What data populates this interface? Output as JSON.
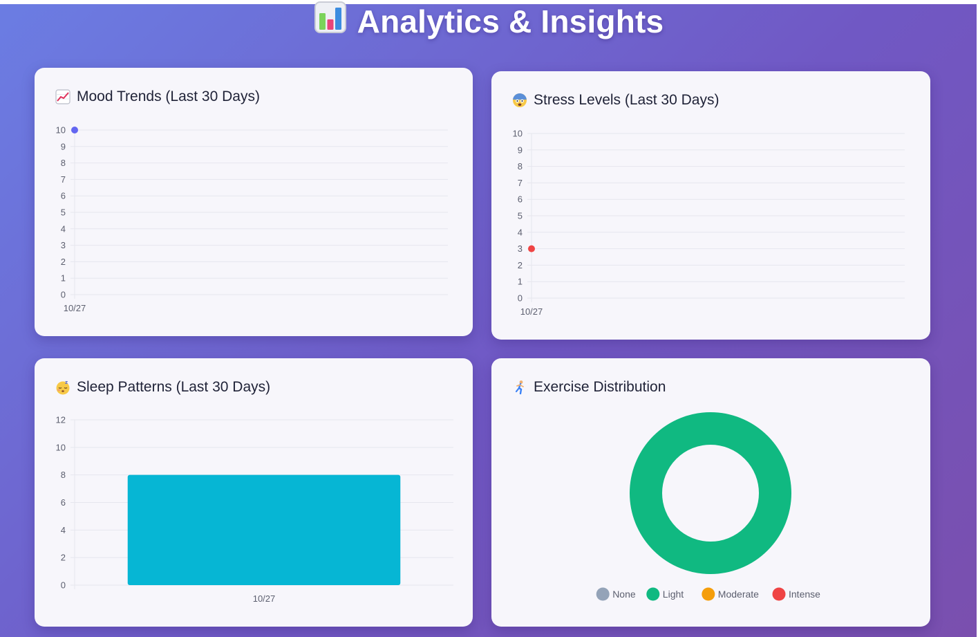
{
  "page": {
    "title": "Analytics & Insights",
    "title_icon": "bar-chart-icon"
  },
  "cards": {
    "mood": {
      "title": "Mood Trends (Last 30 Days)",
      "icon": "chart-increasing-icon"
    },
    "stress": {
      "title": "Stress Levels (Last 30 Days)",
      "icon": "fearful-face-icon"
    },
    "sleep": {
      "title": "Sleep Patterns (Last 30 Days)",
      "icon": "sleeping-face-icon"
    },
    "exercise": {
      "title": "Exercise Distribution",
      "icon": "running-person-icon"
    }
  },
  "chart_data": [
    {
      "id": "mood",
      "type": "line",
      "x": [
        "10/27"
      ],
      "series": [
        {
          "values": [
            10
          ],
          "color": "#6366f1"
        }
      ],
      "ylim": [
        0,
        10
      ],
      "yticks": [
        0,
        1,
        2,
        3,
        4,
        5,
        6,
        7,
        8,
        9,
        10
      ],
      "grid": true
    },
    {
      "id": "stress",
      "type": "line",
      "x": [
        "10/27"
      ],
      "series": [
        {
          "values": [
            3
          ],
          "color": "#ef4444"
        }
      ],
      "ylim": [
        0,
        10
      ],
      "yticks": [
        0,
        1,
        2,
        3,
        4,
        5,
        6,
        7,
        8,
        9,
        10
      ],
      "grid": true
    },
    {
      "id": "sleep",
      "type": "bar",
      "categories": [
        "10/27"
      ],
      "series": [
        {
          "values": [
            8
          ],
          "color": "#06b6d4"
        }
      ],
      "ylim": [
        0,
        12
      ],
      "yticks": [
        0,
        2,
        4,
        6,
        8,
        10,
        12
      ],
      "grid": true
    },
    {
      "id": "exercise",
      "type": "pie",
      "variant": "doughnut",
      "labels": [
        "None",
        "Light",
        "Moderate",
        "Intense"
      ],
      "values": [
        0,
        1,
        0,
        0
      ],
      "colors": [
        "#94a3b8",
        "#10b981",
        "#f59e0b",
        "#ef4444"
      ],
      "legend": "bottom"
    }
  ]
}
